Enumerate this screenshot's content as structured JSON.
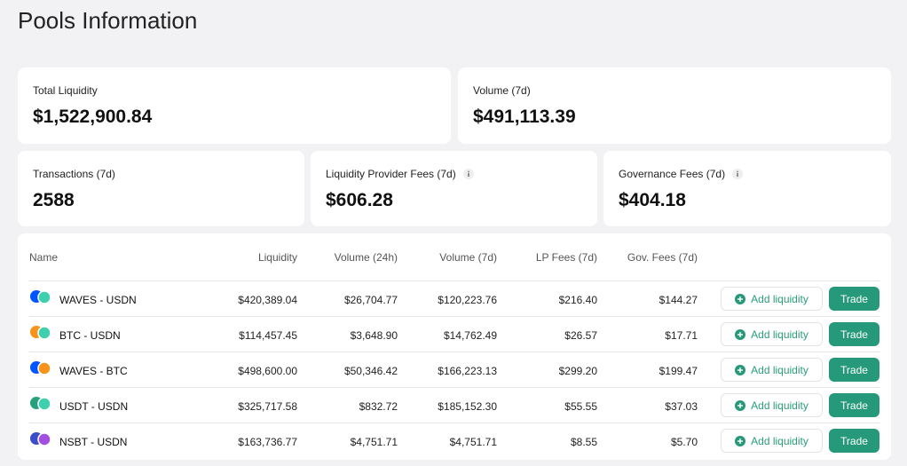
{
  "header": {
    "title": "Pools Information"
  },
  "stats": [
    {
      "label": "Total Liquidity",
      "value": "$1,522,900.84"
    },
    {
      "label": "Volume (7d)",
      "value": "$491,113.39"
    },
    {
      "label": "Transactions (7d)",
      "value": "2588"
    },
    {
      "label": "Liquidity Provider Fees (7d)",
      "value": "$606.28"
    },
    {
      "label": "Governance Fees (7d)",
      "value": "$404.18"
    }
  ],
  "table": {
    "columns": [
      "Name",
      "Liquidity",
      "Volume (24h)",
      "Volume (7d)",
      "LP Fees (7d)",
      "Gov. Fees (7d)"
    ],
    "rows": [
      [
        "WAVES - USDN",
        "$420,389.04",
        "$26,704.77",
        "$120,223.76",
        "$216.40",
        "$144.27"
      ],
      [
        "BTC - USDN",
        "$114,457.45",
        "$3,648.90",
        "$14,762.49",
        "$26.57",
        "$17.71"
      ],
      [
        "WAVES - BTC",
        "$498,600.00",
        "$50,346.42",
        "$166,223.13",
        "$299.20",
        "$199.47"
      ],
      [
        "USDT - USDN",
        "$325,717.58",
        "$832.72",
        "$185,152.30",
        "$55.55",
        "$37.03"
      ],
      [
        "NSBT - USDN",
        "$163,736.77",
        "$4,751.71",
        "$4,751.71",
        "$8.55",
        "$5.70"
      ]
    ],
    "actions": {
      "add": "Add liquidity",
      "trade": "Trade"
    }
  }
}
